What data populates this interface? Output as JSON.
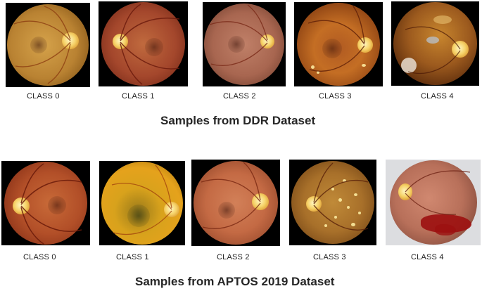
{
  "ddr": {
    "title": "Samples from DDR Dataset",
    "labels": [
      "CLASS 0",
      "CLASS 1",
      "CLASS 2",
      "CLASS 3",
      "CLASS 4"
    ]
  },
  "aptos": {
    "title": "Samples from APTOS 2019 Dataset",
    "labels": [
      "CLASS 0",
      "CLASS 1",
      "CLASS 2",
      "CLASS 3",
      "CLASS 4"
    ]
  },
  "colors": {
    "fundus_orange": "#c9762a",
    "fundus_red": "#a4402a",
    "fundus_yellow": "#e5a21c",
    "optic_disc": "#f6d36a",
    "hemorrhage": "#9c1010"
  }
}
